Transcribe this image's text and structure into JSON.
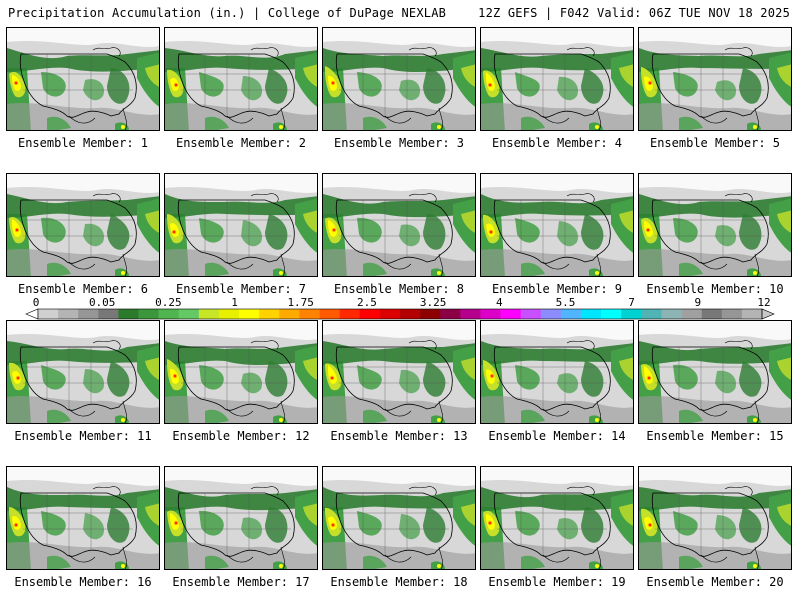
{
  "header": {
    "title": "Precipitation Accumulation (in.) | College of DuPage NEXLAB",
    "run_info": "12Z GEFS | F042 Valid: 06Z TUE NOV 18 2025"
  },
  "members": [
    {
      "label": "Ensemble Member: 1"
    },
    {
      "label": "Ensemble Member: 2"
    },
    {
      "label": "Ensemble Member: 3"
    },
    {
      "label": "Ensemble Member: 4"
    },
    {
      "label": "Ensemble Member: 5"
    },
    {
      "label": "Ensemble Member: 6"
    },
    {
      "label": "Ensemble Member: 7"
    },
    {
      "label": "Ensemble Member: 8"
    },
    {
      "label": "Ensemble Member: 9"
    },
    {
      "label": "Ensemble Member: 10"
    },
    {
      "label": "Ensemble Member: 11"
    },
    {
      "label": "Ensemble Member: 12"
    },
    {
      "label": "Ensemble Member: 13"
    },
    {
      "label": "Ensemble Member: 14"
    },
    {
      "label": "Ensemble Member: 15"
    },
    {
      "label": "Ensemble Member: 16"
    },
    {
      "label": "Ensemble Member: 17"
    },
    {
      "label": "Ensemble Member: 18"
    },
    {
      "label": "Ensemble Member: 19"
    },
    {
      "label": "Ensemble Member: 20"
    }
  ],
  "colorbar": {
    "labels": [
      "0",
      "0.05",
      "0.25",
      "1",
      "1.75",
      "2.5",
      "3.25",
      "4",
      "5.5",
      "7",
      "9",
      "12"
    ],
    "colors": [
      "#d0d0d0",
      "#b4b4b4",
      "#969696",
      "#787878",
      "#2c7a2c",
      "#3c963c",
      "#50b450",
      "#64c864",
      "#c8e628",
      "#e6f000",
      "#ffff00",
      "#ffd200",
      "#ffaa00",
      "#ff8200",
      "#ff5a00",
      "#ff2800",
      "#ff0000",
      "#dc0000",
      "#b40000",
      "#8c0000",
      "#8c0046",
      "#b4008c",
      "#dc00c8",
      "#ff00ff",
      "#c850ff",
      "#8c8cff",
      "#50b4ff",
      "#00e6ff",
      "#00ffff",
      "#00d2d2",
      "#50b4b4",
      "#8cb4b4",
      "#a0a0a0",
      "#787878",
      "#969696",
      "#b4b4b4"
    ]
  },
  "colors": {
    "background_gray": "#d8d8d8",
    "light_precip": "#9a9a9a",
    "green_dark": "#2e7d32",
    "green": "#43a047",
    "yellow_green": "#c6e02a",
    "yellow": "#ffff00",
    "orange": "#ffa500",
    "red": "#ff0000"
  }
}
